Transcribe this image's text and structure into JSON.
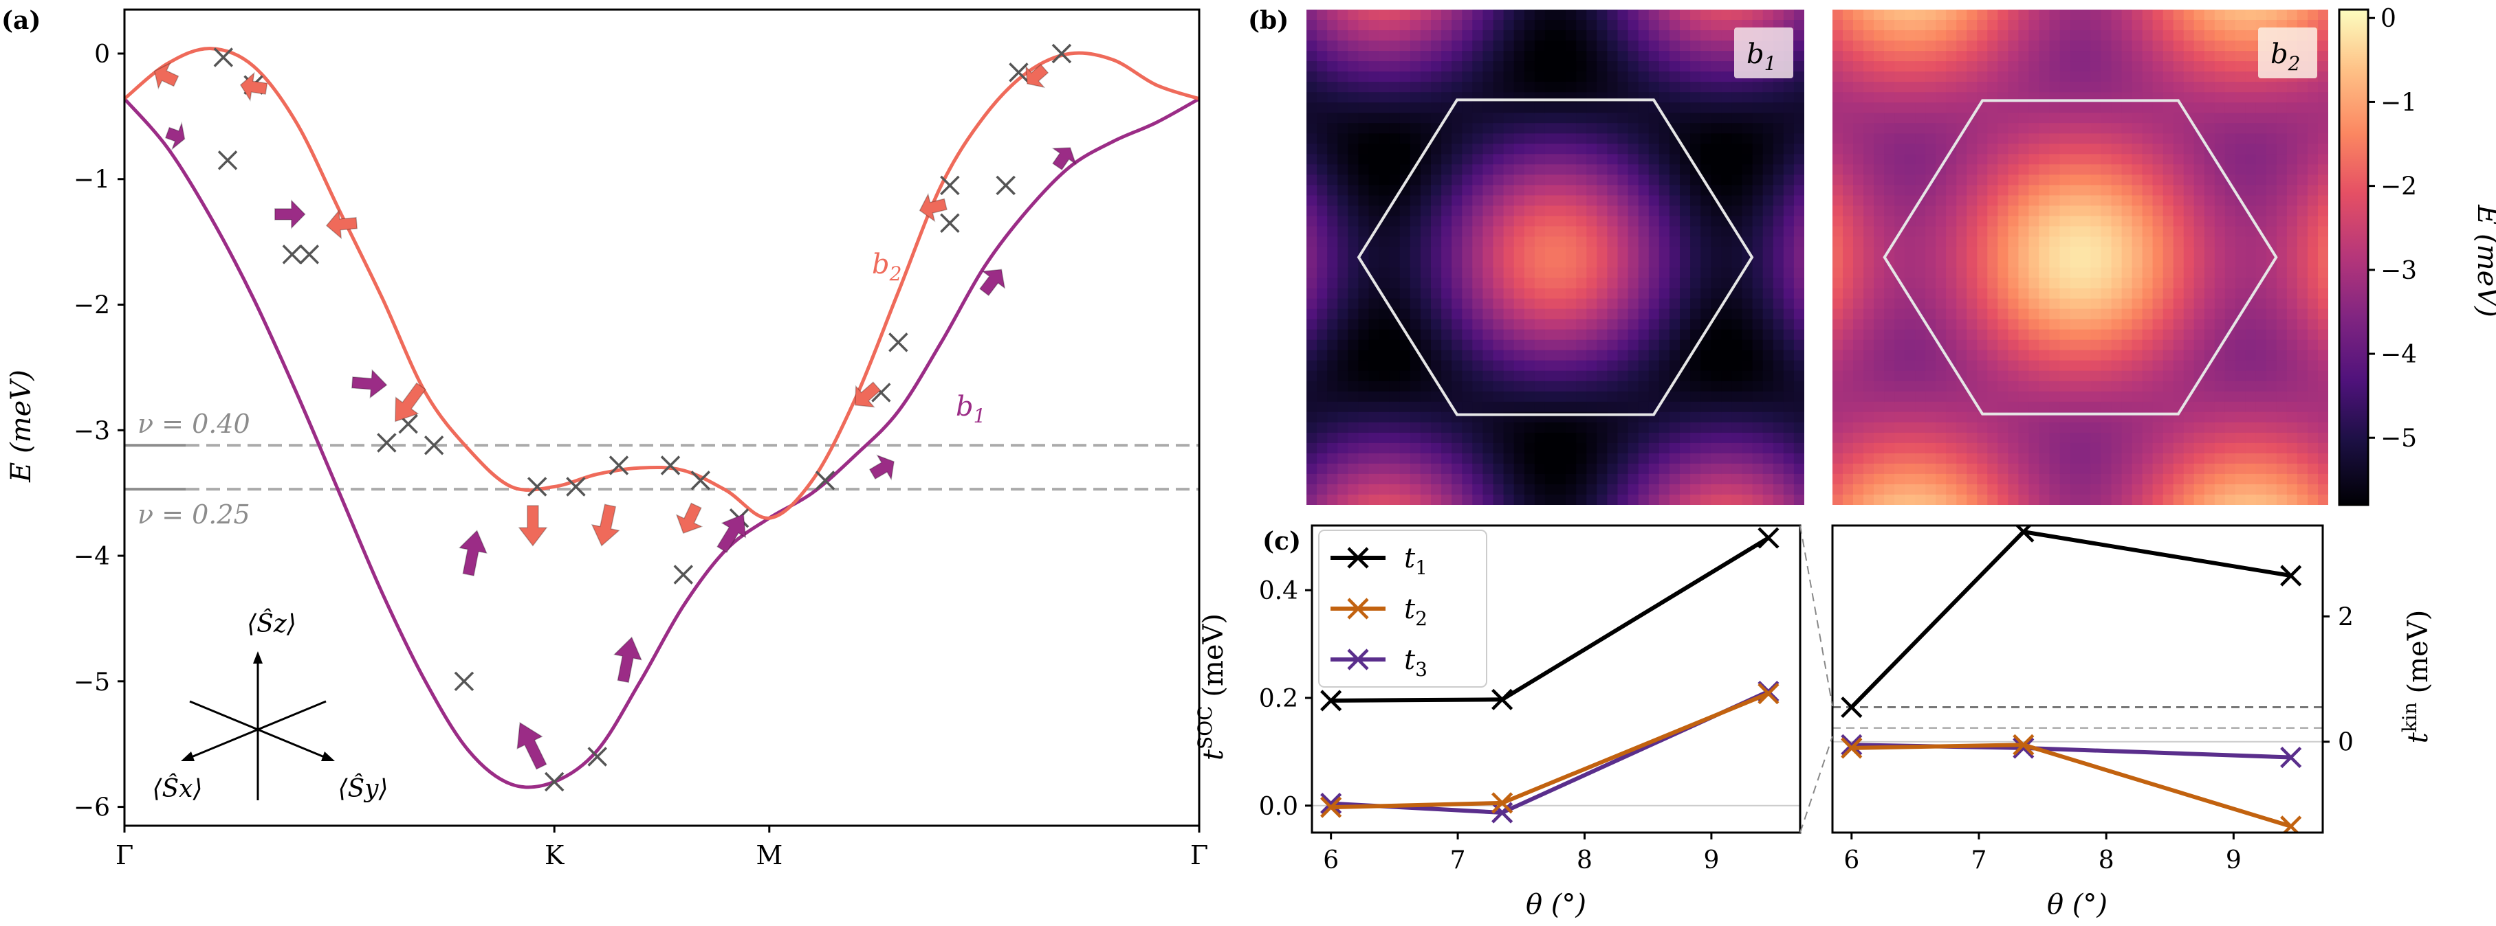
{
  "colors": {
    "b1": "#9b2c86",
    "b2": "#ef6a5a",
    "b2_dark": "#c9423f",
    "b1_dark": "#6e1a5e",
    "t1": "#000000",
    "t2": "#c2620f",
    "t3": "#5a2e8c",
    "grey": "#8c8c8c",
    "dash": "#aaaaaa",
    "hexagon": "#e6e6e6"
  },
  "panel_labels": {
    "a": "(a)",
    "b": "(b)",
    "c": "(c)"
  },
  "chart_data": [
    {
      "id": "a",
      "type": "line",
      "ylabel": "E (meV)",
      "ylim": [
        -6.15,
        0.35
      ],
      "yticks": [
        0,
        -1,
        -2,
        -3,
        -4,
        -5,
        -6
      ],
      "ytick_labels": [
        "0",
        "−1",
        "−2",
        "−3",
        "−4",
        "−5",
        "−6"
      ],
      "xticks": [
        0,
        1,
        1.5,
        2.5
      ],
      "xtick_labels": [
        "Γ",
        "K",
        "M",
        "Γ"
      ],
      "xlim": [
        0,
        2.5
      ],
      "series": [
        {
          "name": "b1",
          "label": "b",
          "label_sub": "1",
          "points": [
            [
              0,
              -0.36
            ],
            [
              0.1,
              -0.75
            ],
            [
              0.2,
              -1.3
            ],
            [
              0.3,
              -1.95
            ],
            [
              0.4,
              -2.7
            ],
            [
              0.5,
              -3.5
            ],
            [
              0.6,
              -4.3
            ],
            [
              0.7,
              -5.0
            ],
            [
              0.8,
              -5.55
            ],
            [
              0.9,
              -5.82
            ],
            [
              1.0,
              -5.8
            ],
            [
              1.1,
              -5.55
            ],
            [
              1.2,
              -5.0
            ],
            [
              1.3,
              -4.4
            ],
            [
              1.4,
              -3.95
            ],
            [
              1.5,
              -3.7
            ],
            [
              1.6,
              -3.5
            ],
            [
              1.7,
              -3.2
            ],
            [
              1.8,
              -2.85
            ],
            [
              1.9,
              -2.3
            ],
            [
              2.0,
              -1.7
            ],
            [
              2.1,
              -1.25
            ],
            [
              2.2,
              -0.9
            ],
            [
              2.3,
              -0.7
            ],
            [
              2.4,
              -0.55
            ],
            [
              2.5,
              -0.36
            ]
          ]
        },
        {
          "name": "b2",
          "label": "b",
          "label_sub": "2",
          "points": [
            [
              0,
              -0.36
            ],
            [
              0.1,
              -0.08
            ],
            [
              0.2,
              0.04
            ],
            [
              0.3,
              -0.1
            ],
            [
              0.4,
              -0.55
            ],
            [
              0.5,
              -1.25
            ],
            [
              0.6,
              -1.95
            ],
            [
              0.7,
              -2.7
            ],
            [
              0.8,
              -3.15
            ],
            [
              0.9,
              -3.45
            ],
            [
              1.0,
              -3.45
            ],
            [
              1.1,
              -3.35
            ],
            [
              1.2,
              -3.3
            ],
            [
              1.3,
              -3.32
            ],
            [
              1.4,
              -3.48
            ],
            [
              1.5,
              -3.7
            ],
            [
              1.6,
              -3.4
            ],
            [
              1.7,
              -2.75
            ],
            [
              1.8,
              -1.9
            ],
            [
              1.9,
              -1.05
            ],
            [
              2.0,
              -0.5
            ],
            [
              2.1,
              -0.15
            ],
            [
              2.2,
              0.0
            ],
            [
              2.3,
              -0.05
            ],
            [
              2.4,
              -0.25
            ],
            [
              2.5,
              -0.36
            ]
          ]
        }
      ],
      "markers_b1": [
        [
          0.24,
          -0.85
        ],
        [
          0.39,
          -1.6
        ],
        [
          0.61,
          -3.1
        ],
        [
          0.79,
          -5.0
        ],
        [
          1.0,
          -5.8
        ],
        [
          1.1,
          -5.6
        ],
        [
          1.3,
          -4.15
        ],
        [
          1.43,
          -3.7
        ],
        [
          1.63,
          -3.4
        ],
        [
          1.8,
          -2.3
        ],
        [
          1.92,
          -1.35
        ],
        [
          2.05,
          -1.05
        ]
      ],
      "markers_b2": [
        [
          0.23,
          -0.03
        ],
        [
          0.3,
          -0.25
        ],
        [
          0.43,
          -1.6
        ],
        [
          0.66,
          -2.95
        ],
        [
          0.72,
          -3.12
        ],
        [
          0.96,
          -3.45
        ],
        [
          1.05,
          -3.45
        ],
        [
          1.15,
          -3.28
        ],
        [
          1.27,
          -3.28
        ],
        [
          1.34,
          -3.4
        ],
        [
          1.76,
          -2.7
        ],
        [
          1.92,
          -1.05
        ],
        [
          2.08,
          -0.15
        ],
        [
          2.18,
          0.0
        ]
      ],
      "arrows_b1": [
        [
          0.1,
          -0.63,
          0.04,
          -0.05
        ],
        [
          0.35,
          -1.28,
          0.07,
          0.0
        ],
        [
          0.53,
          -2.62,
          0.08,
          -0.02
        ],
        [
          0.8,
          -4.15,
          0.02,
          0.35
        ],
        [
          0.97,
          -5.68,
          -0.05,
          0.35
        ],
        [
          1.16,
          -5.0,
          0.02,
          0.35
        ],
        [
          1.39,
          -3.95,
          0.05,
          0.28
        ],
        [
          1.74,
          -3.35,
          0.05,
          0.1
        ],
        [
          2.0,
          -1.9,
          0.04,
          0.18
        ],
        [
          2.17,
          -0.9,
          0.03,
          0.15
        ]
      ],
      "arrows_b2": [
        [
          0.12,
          -0.22,
          -0.05,
          0.08
        ],
        [
          0.33,
          -0.28,
          -0.06,
          0.03
        ],
        [
          0.54,
          -1.35,
          -0.07,
          -0.02
        ],
        [
          0.69,
          -2.65,
          -0.06,
          -0.28
        ],
        [
          0.95,
          -3.6,
          0.0,
          -0.32
        ],
        [
          1.13,
          -3.6,
          -0.02,
          -0.32
        ],
        [
          1.33,
          -3.6,
          -0.03,
          -0.22
        ],
        [
          1.75,
          -2.65,
          -0.05,
          -0.15
        ],
        [
          1.91,
          -1.2,
          -0.06,
          -0.05
        ],
        [
          2.14,
          -0.12,
          -0.04,
          -0.12
        ]
      ],
      "hlines": [
        {
          "y": -3.12,
          "label": "ν = 0.40"
        },
        {
          "y": -3.47,
          "label": "ν = 0.25"
        }
      ],
      "spin_axes": [
        "⟨Ŝz⟩",
        "⟨Ŝx⟩",
        "⟨Ŝy⟩"
      ]
    },
    {
      "id": "b",
      "type": "heatmap",
      "maps": [
        {
          "name": "b1",
          "label": "b",
          "label_sub": "1",
          "center": -1.6,
          "dark": -5.9
        },
        {
          "name": "b2",
          "label": "b",
          "label_sub": "2",
          "center": -0.2,
          "dark": -3.5
        }
      ],
      "colorbar": {
        "label": "E (meV)",
        "range": [
          -5.8,
          0.1
        ],
        "ticks": [
          0,
          -1,
          -2,
          -3,
          -4,
          -5
        ],
        "tick_labels": [
          "0",
          "−1",
          "−2",
          "−3",
          "−4",
          "−5"
        ]
      }
    },
    {
      "id": "c",
      "type": "line",
      "xlabel": "θ (°)",
      "left": {
        "ylabel": "t SOC (meV)",
        "ylim": [
          -0.05,
          0.52
        ],
        "yticks": [
          0.0,
          0.2,
          0.4
        ],
        "ytick_labels": [
          "0.0",
          "0.2",
          "0.4"
        ],
        "xlim": [
          5.85,
          9.7
        ],
        "xticks": [
          6,
          7,
          8,
          9
        ],
        "xtick_labels": [
          "6",
          "7",
          "8",
          "9"
        ],
        "series": [
          {
            "name": "t1",
            "x": [
              6.0,
              7.35,
              9.45
            ],
            "y": [
              0.195,
              0.197,
              0.497
            ]
          },
          {
            "name": "t2",
            "x": [
              6.0,
              7.35,
              9.45
            ],
            "y": [
              -0.003,
              0.005,
              0.208
            ]
          },
          {
            "name": "t3",
            "x": [
              6.0,
              7.35,
              9.45
            ],
            "y": [
              0.004,
              -0.013,
              0.212
            ]
          }
        ]
      },
      "right": {
        "ylabel": "t kin (meV)",
        "ylim": [
          -1.45,
          3.45
        ],
        "yticks": [
          0,
          2
        ],
        "ytick_labels": [
          "0",
          "2"
        ],
        "xlim": [
          5.85,
          9.7
        ],
        "xticks": [
          6,
          7,
          8,
          9
        ],
        "xtick_labels": [
          "6",
          "7",
          "8",
          "9"
        ],
        "series": [
          {
            "name": "t1",
            "x": [
              6.0,
              7.35,
              9.45
            ],
            "y": [
              0.55,
              3.35,
              2.65
            ]
          },
          {
            "name": "t2",
            "x": [
              6.0,
              7.35,
              9.45
            ],
            "y": [
              -0.1,
              -0.05,
              -1.35
            ]
          },
          {
            "name": "t3",
            "x": [
              6.0,
              7.35,
              9.45
            ],
            "y": [
              -0.05,
              -0.1,
              -0.25
            ]
          }
        ],
        "dashed_y": 0.55
      },
      "legend": [
        {
          "name": "t1",
          "label": "t",
          "sub": "1"
        },
        {
          "name": "t2",
          "label": "t",
          "sub": "2"
        },
        {
          "name": "t3",
          "label": "t",
          "sub": "3"
        }
      ]
    }
  ]
}
